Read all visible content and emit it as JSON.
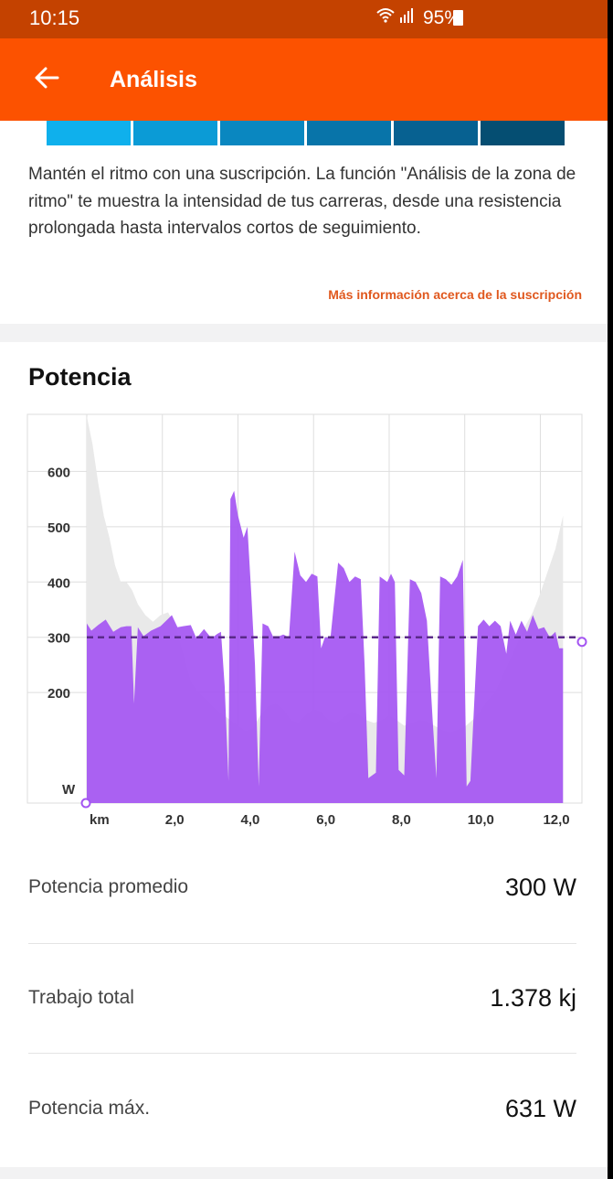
{
  "status_bar": {
    "time": "10:15",
    "battery": "95%"
  },
  "app_bar": {
    "title": "Análisis",
    "back_icon": "arrow-left-icon"
  },
  "zone_colors": [
    "#0fb0ec",
    "#0b9bd6",
    "#0a87c0",
    "#0874a9",
    "#076191",
    "#054e72"
  ],
  "description": "Mantén el ritmo con una suscripción. La función \"Análisis de la zona de ritmo\" te muestra la intensidad de tus carreras, desde una resistencia prolongada hasta intervalos cortos de seguimiento.",
  "more_link": "Más información acerca de la suscripción",
  "power_section": {
    "title": "Potencia",
    "chart_data": {
      "type": "area",
      "y_ticks": [
        "600",
        "500",
        "400",
        "300",
        "200"
      ],
      "y_unit": "W",
      "x_unit": "km",
      "x_ticks": [
        "2,0",
        "4,0",
        "6,0",
        "8,0",
        "10,0",
        "12,0"
      ],
      "ylim": [
        0,
        700
      ],
      "xlim": [
        0,
        13
      ],
      "average_line": 300,
      "grid": true,
      "colors": {
        "power": "#a455f2",
        "elevation": "#e9e9e9",
        "average": "#5a2a8a"
      },
      "power": [
        [
          0.0,
          325
        ],
        [
          0.12,
          312
        ],
        [
          0.3,
          322
        ],
        [
          0.5,
          332
        ],
        [
          0.7,
          310
        ],
        [
          0.9,
          318
        ],
        [
          1.05,
          320
        ],
        [
          1.18,
          320
        ],
        [
          1.25,
          180
        ],
        [
          1.35,
          318
        ],
        [
          1.5,
          302
        ],
        [
          1.7,
          312
        ],
        [
          1.95,
          320
        ],
        [
          2.1,
          330
        ],
        [
          2.25,
          340
        ],
        [
          2.4,
          318
        ],
        [
          2.55,
          320
        ],
        [
          2.75,
          322
        ],
        [
          2.9,
          298
        ],
        [
          3.1,
          315
        ],
        [
          3.3,
          298
        ],
        [
          3.45,
          306
        ],
        [
          3.55,
          310
        ],
        [
          3.65,
          210
        ],
        [
          3.75,
          40
        ],
        [
          3.8,
          550
        ],
        [
          3.9,
          565
        ],
        [
          4.0,
          520
        ],
        [
          4.15,
          480
        ],
        [
          4.25,
          500
        ],
        [
          4.35,
          380
        ],
        [
          4.45,
          250
        ],
        [
          4.55,
          30
        ],
        [
          4.65,
          325
        ],
        [
          4.8,
          320
        ],
        [
          4.95,
          298
        ],
        [
          5.2,
          305
        ],
        [
          5.35,
          300
        ],
        [
          5.5,
          455
        ],
        [
          5.65,
          412
        ],
        [
          5.8,
          400
        ],
        [
          5.95,
          415
        ],
        [
          6.1,
          410
        ],
        [
          6.2,
          280
        ],
        [
          6.3,
          300
        ],
        [
          6.45,
          300
        ],
        [
          6.65,
          435
        ],
        [
          6.8,
          425
        ],
        [
          6.95,
          400
        ],
        [
          7.1,
          410
        ],
        [
          7.25,
          405
        ],
        [
          7.35,
          250
        ],
        [
          7.45,
          45
        ],
        [
          7.65,
          55
        ],
        [
          7.75,
          410
        ],
        [
          7.85,
          405
        ],
        [
          7.95,
          400
        ],
        [
          8.05,
          415
        ],
        [
          8.15,
          400
        ],
        [
          8.25,
          60
        ],
        [
          8.4,
          50
        ],
        [
          8.55,
          405
        ],
        [
          8.7,
          400
        ],
        [
          8.85,
          380
        ],
        [
          9.0,
          330
        ],
        [
          9.15,
          150
        ],
        [
          9.25,
          45
        ],
        [
          9.35,
          410
        ],
        [
          9.5,
          405
        ],
        [
          9.65,
          395
        ],
        [
          9.8,
          410
        ],
        [
          9.95,
          440
        ],
        [
          10.05,
          30
        ],
        [
          10.15,
          40
        ],
        [
          10.35,
          320
        ],
        [
          10.5,
          332
        ],
        [
          10.65,
          320
        ],
        [
          10.8,
          330
        ],
        [
          10.95,
          320
        ],
        [
          11.1,
          270
        ],
        [
          11.2,
          330
        ],
        [
          11.35,
          305
        ],
        [
          11.5,
          330
        ],
        [
          11.65,
          310
        ],
        [
          11.8,
          340
        ],
        [
          11.95,
          315
        ],
        [
          12.1,
          318
        ],
        [
          12.25,
          300
        ],
        [
          12.4,
          310
        ],
        [
          12.5,
          280
        ],
        [
          12.6,
          280
        ]
      ],
      "elevation": [
        [
          0.0,
          700
        ],
        [
          0.15,
          650
        ],
        [
          0.3,
          580
        ],
        [
          0.45,
          520
        ],
        [
          0.6,
          480
        ],
        [
          0.75,
          430
        ],
        [
          0.9,
          400
        ],
        [
          1.05,
          400
        ],
        [
          1.2,
          385
        ],
        [
          1.35,
          360
        ],
        [
          1.55,
          340
        ],
        [
          1.75,
          328
        ],
        [
          1.95,
          340
        ],
        [
          2.15,
          345
        ],
        [
          2.35,
          320
        ],
        [
          2.55,
          270
        ],
        [
          2.75,
          220
        ],
        [
          2.95,
          200
        ],
        [
          3.2,
          185
        ],
        [
          3.4,
          170
        ],
        [
          3.6,
          160
        ],
        [
          3.8,
          150
        ],
        [
          4.0,
          140
        ],
        [
          4.2,
          130
        ],
        [
          4.4,
          135
        ],
        [
          4.6,
          160
        ],
        [
          4.8,
          175
        ],
        [
          5.0,
          180
        ],
        [
          5.2,
          170
        ],
        [
          5.4,
          150
        ],
        [
          5.6,
          145
        ],
        [
          5.8,
          160
        ],
        [
          6.0,
          170
        ],
        [
          6.2,
          165
        ],
        [
          6.4,
          150
        ],
        [
          6.6,
          145
        ],
        [
          6.8,
          155
        ],
        [
          7.0,
          165
        ],
        [
          7.2,
          160
        ],
        [
          7.4,
          150
        ],
        [
          7.6,
          145
        ],
        [
          7.8,
          150
        ],
        [
          8.0,
          158
        ],
        [
          8.2,
          150
        ],
        [
          8.4,
          140
        ],
        [
          8.6,
          145
        ],
        [
          8.8,
          150
        ],
        [
          9.0,
          148
        ],
        [
          9.2,
          140
        ],
        [
          9.4,
          132
        ],
        [
          9.6,
          128
        ],
        [
          9.8,
          132
        ],
        [
          10.0,
          138
        ],
        [
          10.2,
          150
        ],
        [
          10.4,
          165
        ],
        [
          10.6,
          185
        ],
        [
          10.8,
          200
        ],
        [
          11.0,
          230
        ],
        [
          11.2,
          260
        ],
        [
          11.4,
          290
        ],
        [
          11.6,
          320
        ],
        [
          11.8,
          345
        ],
        [
          12.0,
          380
        ],
        [
          12.2,
          420
        ],
        [
          12.4,
          460
        ],
        [
          12.6,
          520
        ]
      ]
    }
  },
  "stats": [
    {
      "label": "Potencia promedio",
      "value": "300 W"
    },
    {
      "label": "Trabajo total",
      "value": "1.378 kj"
    },
    {
      "label": "Potencia máx.",
      "value": "631 W"
    }
  ]
}
